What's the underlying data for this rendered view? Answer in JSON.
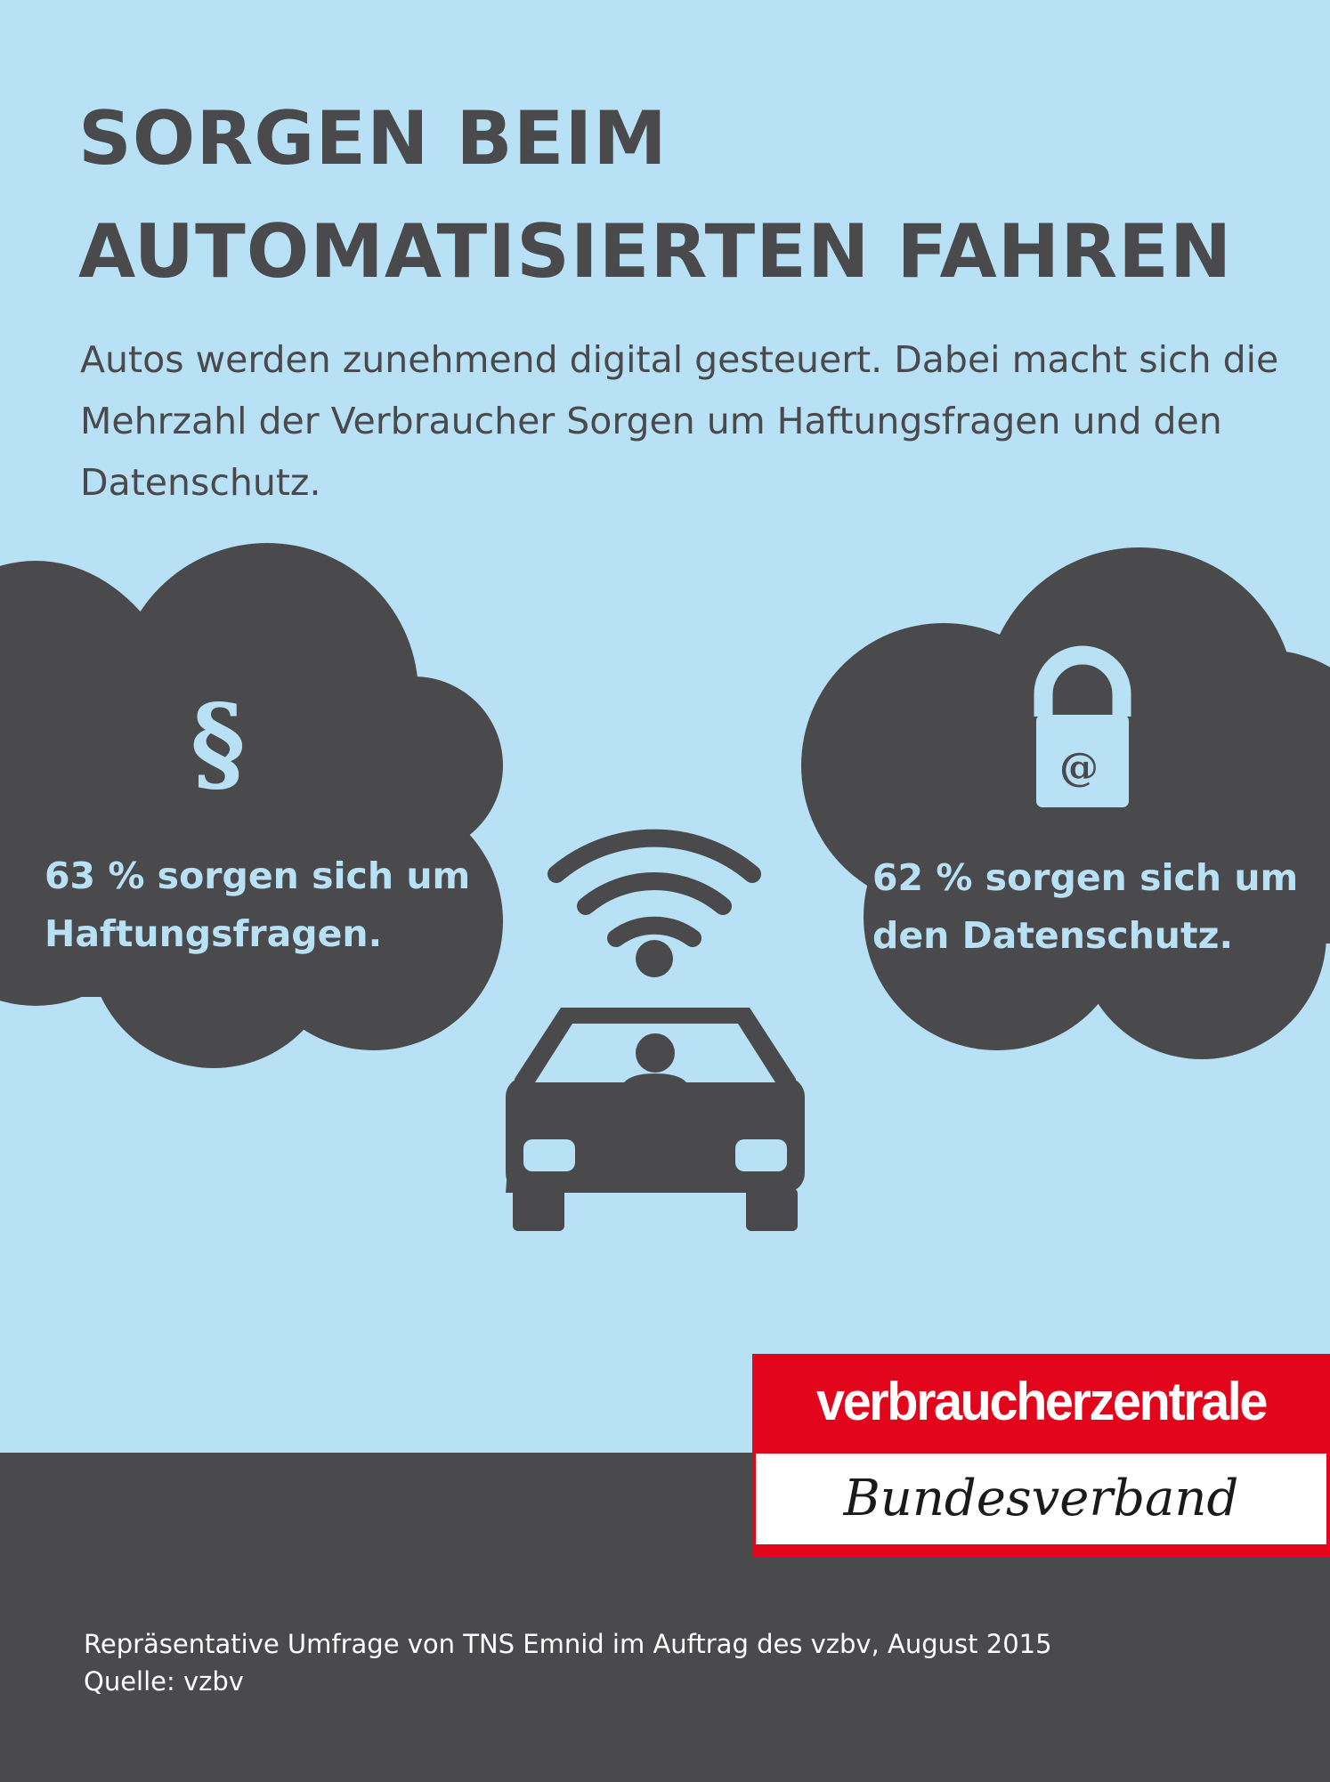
{
  "title": {
    "line1": "SORGEN BEIM",
    "line2": "AUTOMATISIERTEN FAHREN"
  },
  "intro": "Autos werden zunehmend digital gesteuert. Dabei macht sich die Mehrzahl der Verbraucher Sorgen um Haftungsfragen und den Datenschutz.",
  "stats": [
    {
      "icon": "paragraph-section-icon",
      "glyph": "§",
      "value": 63,
      "line1": "63 % sorgen sich um",
      "line2": "Haftungsfragen."
    },
    {
      "icon": "padlock-at-icon",
      "glyph": "@",
      "value": 62,
      "line1": "62 % sorgen sich um",
      "line2": "den Datenschutz."
    }
  ],
  "center_icons": [
    "wifi-signal-icon",
    "car-with-driver-icon"
  ],
  "logo": {
    "brand": "verbraucherzentrale",
    "sub": "Bundesverband"
  },
  "footer": {
    "line1": "Repräsentative Umfrage von TNS Emnid im Auftrag des vzbv, August 2015",
    "line2": "Quelle: vzbv"
  },
  "colors": {
    "background": "#b9e1f6",
    "dark": "#4a4a4c",
    "brand_red": "#e3051b",
    "white": "#ffffff"
  }
}
